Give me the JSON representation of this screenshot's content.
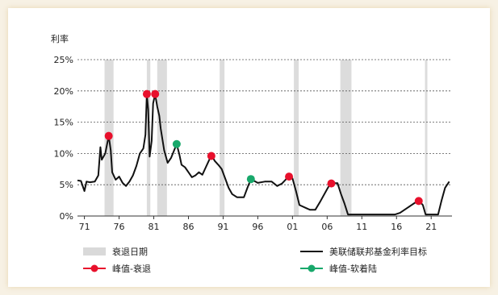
{
  "chart_data": {
    "type": "line",
    "ylabel": "利率",
    "ylim": [
      0,
      25
    ],
    "xlim": [
      1970,
      2024
    ],
    "x_ticks": [
      "71",
      "76",
      "81",
      "86",
      "91",
      "96",
      "01",
      "06",
      "11",
      "16",
      "21"
    ],
    "y_ticks": [
      "0%",
      "5%",
      "10%",
      "15%",
      "20%",
      "25%"
    ],
    "grid": "horizontal dotted",
    "recessions": [
      [
        1973.9,
        1975.2
      ],
      [
        1980.0,
        1980.5
      ],
      [
        1981.5,
        1982.9
      ],
      [
        1990.5,
        1991.2
      ],
      [
        2001.2,
        2001.9
      ],
      [
        2007.9,
        2009.5
      ],
      [
        2020.1,
        2020.4
      ]
    ],
    "series": [
      {
        "name": "美联储联邦基金利率目标",
        "color": "#111111",
        "points": [
          [
            1970.0,
            5.7
          ],
          [
            1970.5,
            5.6
          ],
          [
            1971.0,
            4.0
          ],
          [
            1971.3,
            5.5
          ],
          [
            1971.8,
            5.4
          ],
          [
            1972.5,
            5.5
          ],
          [
            1973.0,
            6.5
          ],
          [
            1973.3,
            11.0
          ],
          [
            1973.5,
            9.0
          ],
          [
            1974.0,
            10.0
          ],
          [
            1974.5,
            12.8
          ],
          [
            1974.8,
            10.5
          ],
          [
            1975.0,
            7.0
          ],
          [
            1975.5,
            5.8
          ],
          [
            1976.0,
            6.3
          ],
          [
            1976.5,
            5.3
          ],
          [
            1977.0,
            4.8
          ],
          [
            1977.5,
            5.5
          ],
          [
            1978.0,
            6.5
          ],
          [
            1978.5,
            8.0
          ],
          [
            1979.0,
            10.0
          ],
          [
            1979.5,
            10.8
          ],
          [
            1979.8,
            13.0
          ],
          [
            1980.0,
            19.5
          ],
          [
            1980.2,
            17.0
          ],
          [
            1980.4,
            9.5
          ],
          [
            1980.7,
            12.0
          ],
          [
            1980.9,
            18.0
          ],
          [
            1981.2,
            19.5
          ],
          [
            1981.5,
            17.5
          ],
          [
            1981.8,
            16.0
          ],
          [
            1982.0,
            14.0
          ],
          [
            1982.5,
            10.5
          ],
          [
            1983.0,
            8.5
          ],
          [
            1983.5,
            9.3
          ],
          [
            1984.3,
            11.5
          ],
          [
            1984.7,
            9.8
          ],
          [
            1985.0,
            8.2
          ],
          [
            1985.5,
            7.8
          ],
          [
            1986.0,
            7.0
          ],
          [
            1986.5,
            6.2
          ],
          [
            1987.0,
            6.5
          ],
          [
            1987.5,
            7.0
          ],
          [
            1988.0,
            6.6
          ],
          [
            1988.5,
            7.8
          ],
          [
            1989.0,
            9.0
          ],
          [
            1989.3,
            9.8
          ],
          [
            1989.8,
            8.8
          ],
          [
            1990.3,
            8.2
          ],
          [
            1990.8,
            7.5
          ],
          [
            1991.3,
            6.0
          ],
          [
            1991.8,
            4.5
          ],
          [
            1992.3,
            3.5
          ],
          [
            1993.0,
            3.0
          ],
          [
            1994.0,
            3.0
          ],
          [
            1994.5,
            4.5
          ],
          [
            1995.0,
            5.9
          ],
          [
            1996.0,
            5.3
          ],
          [
            1997.0,
            5.5
          ],
          [
            1998.0,
            5.5
          ],
          [
            1998.8,
            4.8
          ],
          [
            1999.5,
            5.2
          ],
          [
            2000.0,
            5.8
          ],
          [
            2000.5,
            6.5
          ],
          [
            2001.0,
            6.0
          ],
          [
            2001.5,
            4.0
          ],
          [
            2002.0,
            1.75
          ],
          [
            2003.0,
            1.25
          ],
          [
            2003.5,
            1.0
          ],
          [
            2004.3,
            1.0
          ],
          [
            2005.0,
            2.3
          ],
          [
            2006.0,
            4.3
          ],
          [
            2006.5,
            5.25
          ],
          [
            2007.5,
            5.25
          ],
          [
            2008.0,
            3.5
          ],
          [
            2008.5,
            2.0
          ],
          [
            2009.0,
            0.25
          ],
          [
            2015.8,
            0.25
          ],
          [
            2016.5,
            0.5
          ],
          [
            2017.5,
            1.25
          ],
          [
            2018.5,
            2.0
          ],
          [
            2019.2,
            2.5
          ],
          [
            2019.8,
            1.75
          ],
          [
            2020.2,
            0.25
          ],
          [
            2022.0,
            0.25
          ],
          [
            2022.5,
            2.5
          ],
          [
            2023.0,
            4.5
          ],
          [
            2023.6,
            5.5
          ]
        ]
      },
      {
        "name": "峰值-衰退",
        "color": "#e8102c",
        "markers": [
          [
            1974.5,
            12.8
          ],
          [
            1980.0,
            19.5
          ],
          [
            1981.2,
            19.5
          ],
          [
            1989.3,
            9.6
          ],
          [
            2000.5,
            6.3
          ],
          [
            2006.6,
            5.2
          ],
          [
            2019.2,
            2.4
          ]
        ]
      },
      {
        "name": "峰值-软着陆",
        "color": "#18a86b",
        "markers": [
          [
            1984.3,
            11.5
          ],
          [
            1995.0,
            5.9
          ]
        ]
      }
    ],
    "legend": {
      "placement": "bottom",
      "items": [
        {
          "label": "衰退日期",
          "kind": "shade",
          "color": "#d9d9d9"
        },
        {
          "label": "美联储联邦基金利率目标",
          "kind": "line",
          "color": "#111111"
        },
        {
          "label": "峰值-衰退",
          "kind": "marker-line",
          "color": "#e8102c"
        },
        {
          "label": "峰值-软着陆",
          "kind": "marker-line",
          "color": "#18a86b"
        }
      ]
    }
  }
}
